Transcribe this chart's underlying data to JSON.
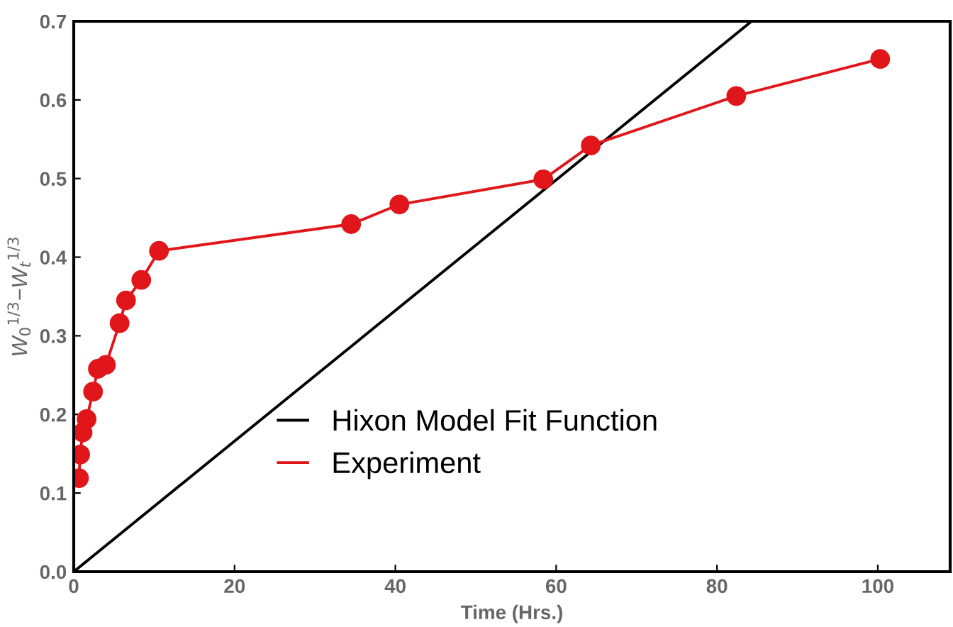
{
  "chart_data": {
    "type": "line",
    "xlabel": "Time (Hrs.)",
    "ylabel": "W$_{0}$$^{1/3}$−W$_{t}$$^{1/3}$",
    "series": [
      {
        "name": "Hixon Model Fit Function",
        "color": "#000000",
        "x": [
          0,
          84.3
        ],
        "values": [
          0,
          0.7
        ],
        "marker": "none"
      },
      {
        "name": "Experiment",
        "color": "#e0161b",
        "marker": "circle",
        "x": [
          0.65,
          0.8,
          1.1,
          1.6,
          2.4,
          3.0,
          4.0,
          5.7,
          6.5,
          8.4,
          10.6,
          34.5,
          40.5,
          58.4,
          64.3,
          82.4,
          100.3
        ],
        "values": [
          0.119,
          0.149,
          0.177,
          0.194,
          0.229,
          0.258,
          0.263,
          0.316,
          0.345,
          0.371,
          0.408,
          0.442,
          0.467,
          0.499,
          0.542,
          0.605,
          0.652
        ]
      }
    ],
    "xlim": [
      0,
      109
    ],
    "ylim": [
      0,
      0.7
    ],
    "xticks": [
      0,
      20,
      40,
      60,
      80,
      100
    ],
    "yticks": [
      {
        "value": 0,
        "label": "0.0"
      },
      0.1,
      0.2,
      0.3,
      0.4,
      0.5,
      0.6,
      0.7
    ],
    "legend": "bottom",
    "grid": false
  }
}
